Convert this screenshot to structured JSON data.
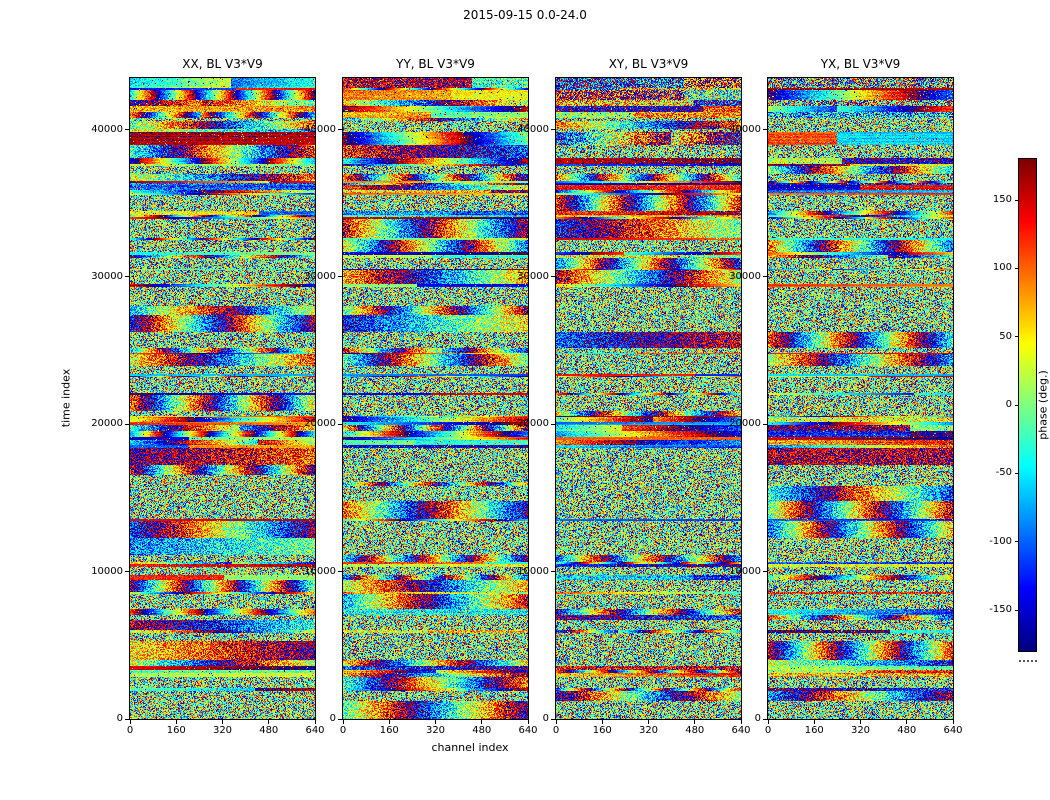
{
  "figure": {
    "title": "2015-09-15 0.0-24.0",
    "background": "#ffffff"
  },
  "chart_data": {
    "type": "heatmap",
    "title": "2015-09-15 0.0-24.0",
    "xlabel": "channel index",
    "ylabel": "time index",
    "xlim": [
      0,
      640
    ],
    "ylim": [
      0,
      43500
    ],
    "x_ticks": [
      0,
      160,
      320,
      480,
      640
    ],
    "y_ticks": [
      0,
      10000,
      20000,
      30000,
      40000
    ],
    "grid": false,
    "panels": [
      {
        "pol": "XX",
        "title": "XX, BL V3*V9"
      },
      {
        "pol": "YY",
        "title": "YY, BL V3*V9"
      },
      {
        "pol": "XY",
        "title": "XY, BL V3*V9"
      },
      {
        "pol": "YX",
        "title": "YX, BL V3*V9"
      }
    ],
    "colorbar": {
      "label": "phase (deg.)",
      "ticks": [
        150,
        100,
        50,
        0,
        -50,
        -100,
        -150
      ],
      "vmin": -180,
      "vmax": 180,
      "colormap": "jet"
    },
    "content": "Dense per-pixel visibility phase noise (jet colormap); horizontal coherent-phase bands occur at the same time rows across all four polarization panels, with thicker smooth bands near the top (time ~39000-43500)."
  }
}
